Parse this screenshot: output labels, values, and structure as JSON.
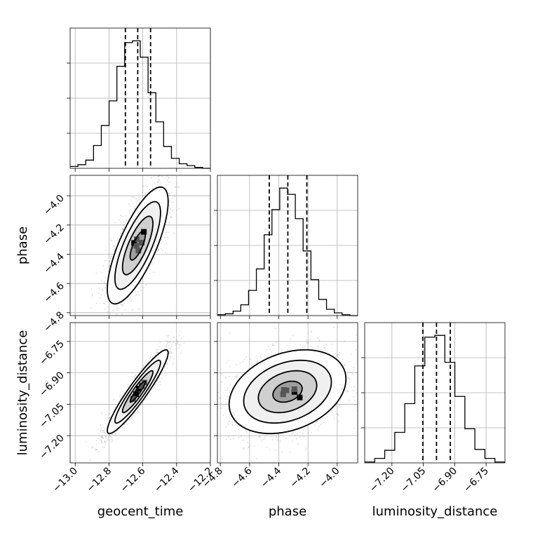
{
  "chart_data": {
    "type": "corner",
    "parameters": [
      "geocent_time",
      "phase",
      "luminosity_distance"
    ],
    "axis_labels": {
      "geocent_time": "geocent_time",
      "phase": "phase",
      "luminosity_distance": "luminosity_distance"
    },
    "ranges": {
      "geocent_time": [
        -13.03,
        -12.2
      ],
      "phase": [
        -4.82,
        -3.86
      ],
      "luminosity_distance": [
        -7.33,
        -6.66
      ]
    },
    "ticks": {
      "geocent_time": [
        -13.0,
        -12.8,
        -12.6,
        -12.4,
        -12.2
      ],
      "phase": [
        -4.8,
        -4.6,
        -4.4,
        -4.2,
        -4.0
      ],
      "luminosity_distance": [
        -7.2,
        -7.05,
        -6.9,
        -6.75
      ]
    },
    "tick_labels": {
      "geocent_time": [
        "−13.0",
        "−12.8",
        "−12.6",
        "−12.4",
        "−12.2"
      ],
      "phase": [
        "−4.8",
        "−4.6",
        "−4.4",
        "−4.2",
        "−4.0"
      ],
      "luminosity_distance": [
        "−7.20",
        "−7.05",
        "−6.90",
        "−6.75"
      ]
    },
    "quantiles": {
      "geocent_time": [
        -12.703,
        -12.63,
        -12.554
      ],
      "phase": [
        -4.465,
        -4.338,
        -4.208
      ],
      "luminosity_distance": [
        -7.052,
        -6.987,
        -6.921
      ]
    },
    "histograms": {
      "geocent_time": [
        2,
        4,
        9,
        25,
        47,
        74,
        112,
        138,
        140,
        122,
        83,
        51,
        24,
        11,
        5,
        3,
        1,
        0
      ],
      "phase": [
        1,
        2,
        5,
        12,
        28,
        52,
        90,
        118,
        142,
        135,
        108,
        72,
        40,
        18,
        7,
        3,
        1,
        0
      ],
      "luminosity_distance": [
        1,
        5,
        14,
        34,
        66,
        108,
        140,
        142,
        112,
        74,
        38,
        15,
        5,
        1
      ]
    },
    "hist_y_ticks": 3,
    "grid": true,
    "pairs": [
      {
        "x": "geocent_time",
        "y": "phase",
        "mean": [
          -12.63,
          -4.34
        ],
        "std": [
          0.09,
          0.2
        ],
        "corr": 0.75
      },
      {
        "x": "geocent_time",
        "y": "luminosity_distance",
        "mean": [
          -12.63,
          -6.99
        ],
        "std": [
          0.09,
          0.1
        ],
        "corr": 0.93
      },
      {
        "x": "phase",
        "y": "luminosity_distance",
        "mean": [
          -4.34,
          -6.99
        ],
        "std": [
          0.2,
          0.1
        ],
        "corr": 0.3
      }
    ],
    "contour_levels_sigma": [
      0.5,
      1.0,
      1.5,
      2.0
    ],
    "colors": {
      "line": "#000000",
      "scatter": "#9a9a9a",
      "grid": "#b0b0b0"
    }
  }
}
